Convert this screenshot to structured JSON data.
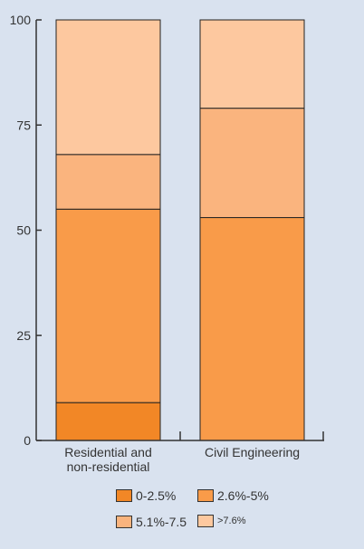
{
  "chart_data": {
    "type": "bar",
    "stacked": true,
    "categories": [
      [
        "Residential and",
        "non-residential"
      ],
      [
        "Civil Engineering"
      ]
    ],
    "series": [
      {
        "name": "0-2.5%",
        "color": "#f28726",
        "values": [
          9,
          0
        ]
      },
      {
        "name": "2.6%-5%",
        "color": "#f99b49",
        "values": [
          46,
          53
        ]
      },
      {
        "name": "5.1%-7.5",
        "color": "#fab47e",
        "values": [
          13,
          26
        ]
      },
      {
        "name": ">7.6%",
        "color": "#fdc89f",
        "values": [
          32,
          21
        ]
      }
    ],
    "yticks": [
      "0",
      "25",
      "50",
      "75",
      "100"
    ],
    "ylim": [
      0,
      100
    ],
    "title": "",
    "xlabel": "",
    "ylabel": "",
    "grid": false,
    "legend_position": "bottom"
  }
}
